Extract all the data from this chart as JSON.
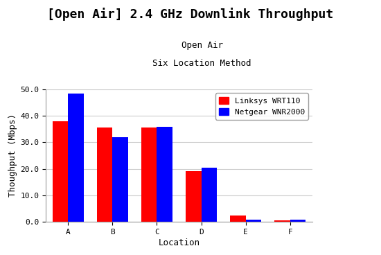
{
  "title": "[Open Air] 2.4 GHz Downlink Throughput",
  "subtitle1": "Open Air",
  "subtitle2": "Six Location Method",
  "xlabel": "Location",
  "ylabel": "Thoughput (Mbps)",
  "categories": [
    "A",
    "B",
    "C",
    "D",
    "E",
    "F"
  ],
  "series": [
    {
      "label": "Linksys WRT110",
      "color": "#ff0000",
      "values": [
        38.0,
        35.5,
        35.5,
        19.2,
        2.5,
        0.6
      ]
    },
    {
      "label": "Netgear WNR2000",
      "color": "#0000ff",
      "values": [
        48.3,
        32.0,
        35.8,
        20.5,
        0.8,
        0.9
      ]
    }
  ],
  "ylim": [
    0,
    50.0
  ],
  "yticks": [
    0.0,
    10.0,
    20.0,
    30.0,
    40.0,
    50.0
  ],
  "bar_width": 0.35,
  "background_color": "#ffffff",
  "plot_bg_color": "#ffffff",
  "grid_color": "#cccccc",
  "title_fontsize": 13,
  "subtitle_fontsize": 9,
  "axis_label_fontsize": 9,
  "tick_fontsize": 8,
  "legend_fontsize": 8
}
